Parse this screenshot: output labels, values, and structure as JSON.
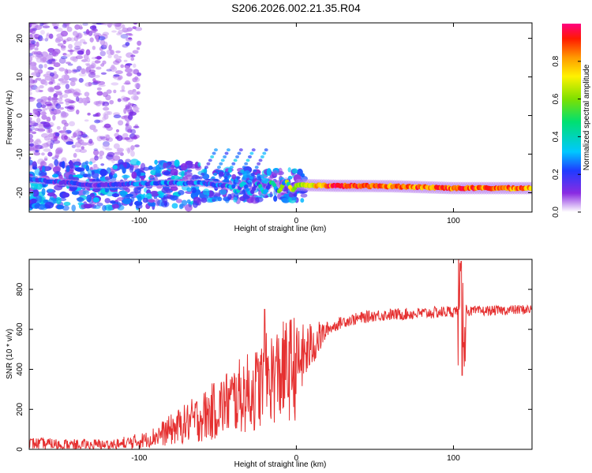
{
  "title": "S206.2026.002.21.35.R04",
  "chart_data": [
    {
      "id": "spectrogram",
      "type": "heatmap",
      "xlabel": "Height of straight line (km)",
      "ylabel": "Frequency (Hz)",
      "xlim": [
        -170,
        150
      ],
      "ylim": [
        -25,
        24
      ],
      "xticks": [
        -100,
        0,
        100
      ],
      "yticks": [
        -20,
        -10,
        0,
        10,
        20
      ],
      "band": {
        "description": "main spectral ridge",
        "points": [
          {
            "x": -170,
            "y": -16.5,
            "amp": 0.25
          },
          {
            "x": -130,
            "y": -18.0,
            "amp": 0.15
          },
          {
            "x": -90,
            "y": -17.5,
            "amp": 0.25
          },
          {
            "x": -60,
            "y": -17.5,
            "amp": 0.25
          },
          {
            "x": -30,
            "y": -19.0,
            "amp": 0.3
          },
          {
            "x": -15,
            "y": -18.5,
            "amp": 0.4
          },
          {
            "x": 0,
            "y": -18.0,
            "amp": 0.6
          },
          {
            "x": 25,
            "y": -18.2,
            "amp": 0.95
          },
          {
            "x": 60,
            "y": -18.3,
            "amp": 0.85
          },
          {
            "x": 100,
            "y": -18.8,
            "amp": 0.9
          },
          {
            "x": 150,
            "y": -18.8,
            "amp": 0.85
          }
        ]
      },
      "colorbar": {
        "label": "Normalized spectral amplitude",
        "ticks": [
          "0.0",
          "0.2",
          "0.4",
          "0.6",
          "0.8"
        ],
        "range": [
          0,
          1
        ]
      }
    },
    {
      "id": "snr",
      "type": "line",
      "xlabel": "Height of straight line (km)",
      "ylabel": "SNR (10 * v/v)",
      "xlim": [
        -170,
        150
      ],
      "ylim": [
        0,
        950
      ],
      "xticks": [
        -100,
        0,
        100
      ],
      "yticks": [
        0,
        200,
        400,
        600,
        800
      ],
      "color": "#e53030",
      "series": [
        {
          "name": "SNR",
          "x": [
            -170,
            -140,
            -110,
            -95,
            -85,
            -70,
            -55,
            -45,
            -35,
            -25,
            -20,
            -10,
            0,
            10,
            20,
            30,
            50,
            80,
            100,
            104,
            106,
            110,
            130,
            150
          ],
          "y": [
            30,
            20,
            25,
            50,
            80,
            130,
            180,
            230,
            270,
            300,
            350,
            380,
            420,
            520,
            600,
            640,
            670,
            680,
            690,
            700,
            720,
            690,
            695,
            700
          ]
        }
      ]
    }
  ]
}
